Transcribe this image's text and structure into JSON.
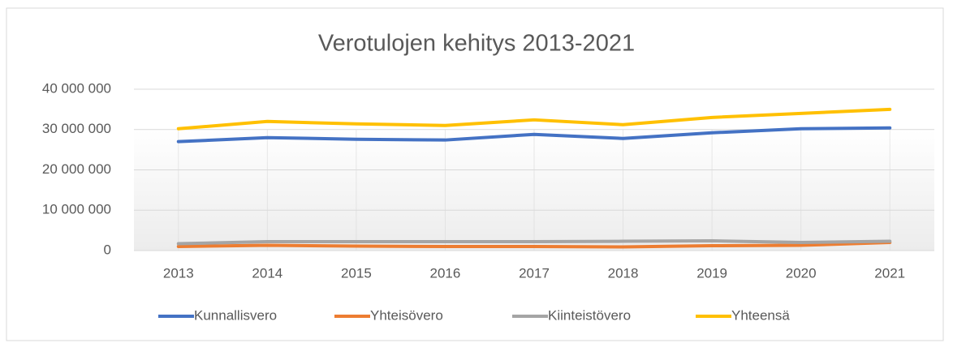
{
  "chart_data": {
    "type": "line",
    "title": "Verotulojen kehitys 2013-2021",
    "categories": [
      "2013",
      "2014",
      "2015",
      "2016",
      "2017",
      "2018",
      "2019",
      "2020",
      "2021"
    ],
    "series": [
      {
        "name": "Kunnallisvero",
        "color": "#4472c4",
        "values": [
          27000000,
          28000000,
          27600000,
          27400000,
          28800000,
          27800000,
          29200000,
          30200000,
          30400000
        ]
      },
      {
        "name": "Yhteisövero",
        "color": "#ed7d31",
        "values": [
          1000000,
          1300000,
          1100000,
          1000000,
          1000000,
          900000,
          1200000,
          1300000,
          2000000
        ]
      },
      {
        "name": "Kiinteistövero",
        "color": "#a5a5a5",
        "values": [
          1700000,
          2200000,
          2200000,
          2200000,
          2200000,
          2300000,
          2400000,
          2000000,
          2300000
        ]
      },
      {
        "name": "Yhteensä",
        "color": "#ffc000",
        "values": [
          30200000,
          32000000,
          31400000,
          31000000,
          32400000,
          31200000,
          33000000,
          34000000,
          35000000
        ]
      }
    ],
    "ylim": [
      0,
      40000000
    ],
    "yticks": [
      0,
      {
        "value": 10000000,
        "label": "10 000 000"
      },
      {
        "value": 20000000,
        "label": "20 000 000"
      },
      {
        "value": 30000000,
        "label": "30 000 000"
      },
      {
        "value": 40000000,
        "label": "40 000 000"
      }
    ],
    "grid": true,
    "legend": "bottom"
  }
}
